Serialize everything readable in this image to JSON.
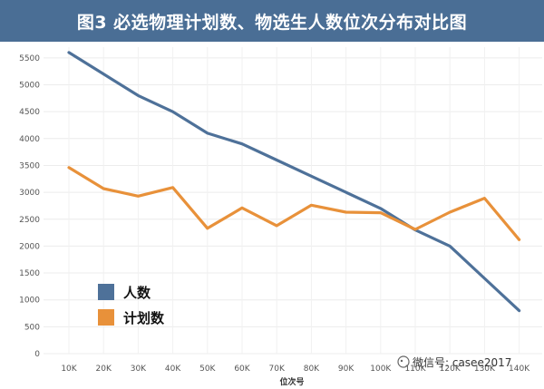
{
  "chart_data": {
    "type": "line",
    "title": "图3  必选物理计划数、物选生人数位次分布对比图",
    "xlabel": "位次号",
    "ylabel": "",
    "categories": [
      "10K",
      "20K",
      "30K",
      "40K",
      "50K",
      "60K",
      "70K",
      "80K",
      "90K",
      "100K",
      "110K",
      "120K",
      "130K",
      "140K"
    ],
    "yticks": [
      0,
      500,
      1000,
      1500,
      2000,
      2500,
      3000,
      3500,
      4000,
      4500,
      5000,
      5500
    ],
    "ylim": [
      0,
      5700
    ],
    "grid": true,
    "legend_placement": "bottom-left",
    "series": [
      {
        "name": "人数",
        "color": "#4e7199",
        "values": [
          5600,
          5200,
          4800,
          4500,
          4100,
          3900,
          3600,
          3300,
          3000,
          2700,
          2300,
          2000,
          1400,
          800
        ]
      },
      {
        "name": "计划数",
        "color": "#e8913a",
        "values": [
          3460,
          3070,
          2930,
          3090,
          2330,
          2710,
          2380,
          2760,
          2630,
          2620,
          2310,
          2630,
          2890,
          2120
        ]
      }
    ]
  },
  "watermark": "微信号: casee2017"
}
